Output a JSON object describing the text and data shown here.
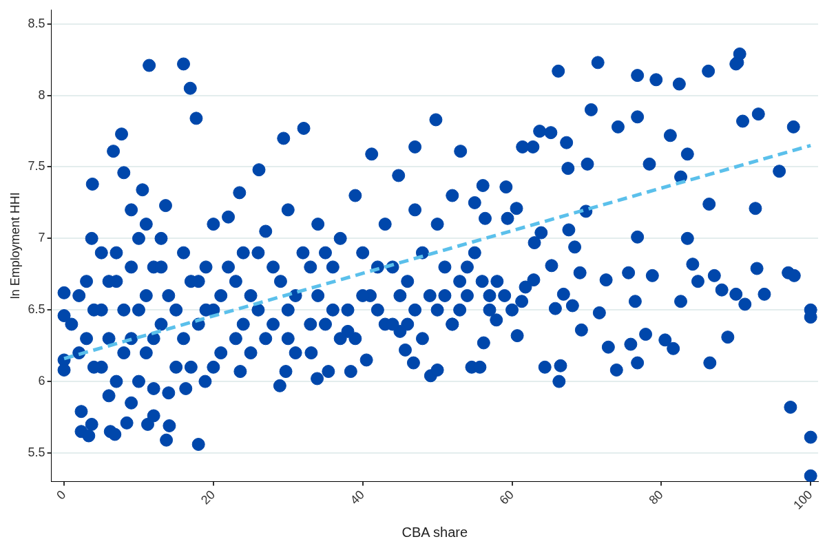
{
  "chart_data": {
    "type": "scatter",
    "xlabel": "CBA share",
    "ylabel": "ln Employment HHI",
    "xlim": [
      -1.7,
      101
    ],
    "ylim": [
      5.3,
      8.6
    ],
    "xticks": [
      0,
      20,
      40,
      60,
      80,
      100
    ],
    "yticks": [
      5.5,
      6,
      6.5,
      7,
      7.5,
      8,
      8.5
    ],
    "grid": "y",
    "marker": "circle",
    "series": [
      {
        "type": "scatter",
        "color": "#0047ab",
        "x": [
          11.4,
          16.0,
          16.9,
          17.7,
          7.7,
          6.6,
          8.0,
          3.8,
          29.4,
          32.1,
          41.2,
          47.0,
          49.8,
          53.1,
          44.8,
          26.1,
          23.5,
          13.6,
          10.5,
          3.7,
          0,
          0,
          0,
          0,
          2.3,
          2.3,
          3.3,
          3.7,
          6.2,
          6.8,
          8.4,
          11.2,
          12.0,
          13.7,
          14.1,
          18.0,
          18.9,
          16.3,
          23.6,
          28.9,
          29.7,
          33.1,
          33.9,
          35.4,
          38.4,
          40.5,
          45.7,
          46.8,
          49.1,
          50.0,
          54.6,
          55.7,
          56.2,
          57.9,
          60.7,
          61.8,
          64.4,
          66.3,
          66.5,
          63.7,
          65.2,
          66.2,
          71.5,
          76.8,
          79.3,
          82.4,
          86.3,
          90.2,
          90.5,
          90.0,
          100,
          100,
          100,
          100,
          97.3,
          97.0,
          97.8,
          95.8,
          97.7,
          93.0,
          90.9,
          92.6,
          88.9,
          86.5,
          86.4,
          88.1,
          90.0,
          92.8,
          91.2,
          83.5,
          84.2,
          84.9,
          82.6,
          83.5,
          81.2,
          80.5,
          81.6,
          77.9,
          75.9,
          76.8,
          74.0,
          72.9,
          69.3,
          71.7,
          69.1,
          72.6,
          75.6,
          76.5,
          78.8,
          76.8,
          78.4,
          76.8,
          74.2,
          70.6,
          70.1,
          67.3,
          67.5,
          62.8,
          61.4,
          60.6,
          59.2,
          59.4,
          56.1,
          56.4,
          55.0,
          63.0,
          63.9,
          65.3,
          67.6,
          68.4,
          69.9,
          66.9,
          68.1,
          65.8,
          61.3,
          62.9,
          93.8,
          82.6,
          87.1,
          3,
          5,
          5,
          7,
          8,
          10,
          10,
          12,
          12,
          14,
          15,
          16,
          18,
          18,
          20,
          21,
          22,
          24,
          25,
          26,
          27,
          29,
          30,
          31,
          32,
          34,
          35,
          36,
          38,
          39,
          40,
          41,
          43,
          44,
          45,
          46,
          48,
          49,
          50,
          51,
          52,
          53,
          54,
          55,
          57,
          58,
          9,
          11,
          13,
          20,
          22,
          27,
          30,
          34,
          37,
          39,
          43,
          47,
          50,
          52,
          6,
          9,
          12,
          14,
          20,
          25,
          30,
          38,
          45,
          52,
          1,
          2,
          2,
          4,
          4,
          6,
          6,
          7,
          8,
          9,
          9,
          11,
          11,
          13,
          13,
          15,
          16,
          17,
          17,
          19,
          19,
          21,
          23,
          23,
          24,
          26,
          28,
          28,
          31,
          33,
          33,
          35,
          36,
          37,
          40,
          42,
          42,
          44,
          46,
          47,
          48,
          51,
          53,
          54,
          56,
          57,
          59,
          60,
          5,
          7,
          10,
          3
        ],
        "values": [
          8.21,
          8.22,
          8.05,
          7.84,
          7.73,
          7.61,
          7.46,
          7.38,
          7.7,
          7.77,
          7.59,
          7.64,
          7.83,
          7.61,
          7.44,
          7.48,
          7.32,
          7.23,
          7.34,
          7.0,
          6.62,
          6.46,
          6.15,
          6.08,
          5.79,
          5.65,
          5.62,
          5.7,
          5.65,
          5.63,
          5.71,
          5.7,
          5.76,
          5.59,
          5.69,
          5.56,
          6.0,
          5.95,
          6.07,
          5.97,
          6.07,
          6.2,
          6.02,
          6.07,
          6.07,
          6.15,
          6.22,
          6.13,
          6.04,
          6.08,
          6.1,
          6.1,
          6.27,
          6.43,
          6.32,
          6.66,
          6.1,
          6.0,
          6.11,
          7.75,
          7.74,
          8.17,
          8.23,
          8.14,
          8.11,
          8.08,
          8.17,
          8.23,
          8.29,
          8.22,
          6.5,
          6.45,
          5.61,
          5.34,
          5.82,
          6.76,
          6.74,
          7.47,
          7.78,
          7.87,
          7.82,
          7.21,
          6.31,
          6.13,
          7.24,
          6.64,
          6.61,
          6.79,
          6.54,
          7.0,
          6.82,
          6.7,
          7.43,
          7.59,
          7.72,
          6.29,
          6.23,
          6.33,
          6.26,
          6.13,
          6.08,
          6.24,
          6.36,
          6.48,
          6.76,
          6.71,
          6.76,
          6.56,
          6.74,
          7.01,
          7.52,
          7.85,
          7.78,
          7.9,
          7.52,
          7.67,
          7.49,
          7.64,
          7.64,
          7.21,
          7.36,
          7.14,
          7.37,
          7.14,
          7.25,
          6.97,
          7.04,
          6.81,
          7.06,
          6.94,
          7.19,
          6.61,
          6.53,
          6.51,
          6.56,
          6.71,
          6.61,
          6.56,
          6.74,
          6.3,
          6.5,
          6.1,
          6.7,
          6.2,
          6.5,
          6.0,
          6.8,
          6.3,
          6.6,
          6.1,
          6.9,
          6.4,
          6.7,
          6.5,
          6.2,
          6.8,
          6.4,
          6.6,
          6.9,
          6.3,
          6.7,
          6.5,
          6.2,
          6.9,
          6.6,
          6.4,
          6.8,
          6.5,
          6.3,
          6.9,
          6.6,
          6.4,
          6.8,
          6.6,
          6.4,
          6.9,
          6.6,
          6.5,
          6.8,
          6.4,
          6.7,
          6.6,
          6.9,
          6.6,
          6.7,
          7.2,
          7.1,
          7.0,
          7.1,
          7.15,
          7.05,
          7.2,
          7.1,
          7.0,
          7.3,
          7.1,
          7.2,
          7.1,
          7.3,
          5.9,
          5.85,
          5.95,
          5.92,
          6.1,
          6.2,
          6.3,
          6.35,
          6.35,
          6.4,
          6.4,
          6.6,
          6.2,
          6.5,
          6.1,
          6.3,
          6.7,
          6.0,
          6.5,
          6.8,
          6.3,
          6.6,
          6.2,
          6.4,
          6.8,
          6.5,
          6.3,
          6.7,
          6.1,
          6.5,
          6.8,
          6.6,
          6.3,
          6.7,
          6.9,
          6.5,
          6.4,
          6.8,
          6.6,
          6.4,
          6.8,
          6.9,
          6.5,
          6.3,
          6.6,
          6.5,
          6.8,
          6.4,
          6.7,
          6.5,
          6.3,
          6.6,
          6.5,
          6.8,
          6.7,
          6.5,
          6.6,
          6.5,
          6.9,
          6.9,
          7.0,
          6.7
        ]
      },
      {
        "type": "line",
        "color": "#5bc0eb",
        "x": [
          0,
          100
        ],
        "values": [
          6.16,
          7.65
        ],
        "line_style": "dashed",
        "marker": "none"
      }
    ]
  }
}
